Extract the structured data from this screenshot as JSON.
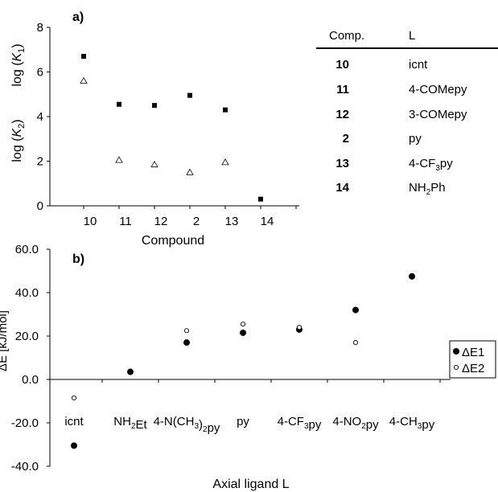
{
  "chart_data": [
    {
      "type": "scatter",
      "panel_label": "a)",
      "xlabel": "Compound",
      "ylabel_top": "log (K1)",
      "ylabel_bottom": "log (K2)",
      "categories": [
        "10",
        "11",
        "12",
        "2",
        "13",
        "14"
      ],
      "ylim": [
        0,
        8
      ],
      "yticks": [
        0,
        2,
        4,
        6,
        8
      ],
      "series": [
        {
          "marker": "filled-square",
          "values": [
            6.7,
            4.55,
            4.5,
            4.95,
            4.3,
            0.3
          ]
        },
        {
          "marker": "open-triangle",
          "values": [
            5.6,
            2.05,
            1.85,
            1.5,
            1.95,
            null
          ]
        }
      ]
    },
    {
      "type": "scatter",
      "panel_label": "b)",
      "xlabel": "Axial ligand L",
      "ylabel": "ΔE [kJ/mol]",
      "categories": [
        "icnt",
        "NH2Et",
        "4-N(CH3)2py",
        "py",
        "4-CF3py",
        "4-NO2py",
        "4-CH3py"
      ],
      "ylim": [
        -40,
        60
      ],
      "yticks": [
        -40.0,
        -20.0,
        0.0,
        20.0,
        40.0,
        60.0
      ],
      "ytick_labels": [
        "-40.0",
        "-20.0",
        "0.0",
        "20.0",
        "40.0",
        "60.0"
      ],
      "legend_position": "right",
      "series": [
        {
          "name": "ΔE1",
          "marker": "filled-circle",
          "values": [
            -30.5,
            3.5,
            17,
            21.5,
            23,
            32,
            47.5
          ]
        },
        {
          "name": "ΔE2",
          "marker": "open-circle",
          "values": [
            -8.5,
            null,
            22.5,
            25.5,
            24,
            17,
            null
          ]
        }
      ]
    }
  ],
  "table": {
    "headers": [
      "Comp.",
      "L"
    ],
    "rows": [
      {
        "comp": "10",
        "ligand": "icnt"
      },
      {
        "comp": "11",
        "ligand": "4-COMepy"
      },
      {
        "comp": "12",
        "ligand": "3-COMepy"
      },
      {
        "comp": "2",
        "ligand": "py"
      },
      {
        "comp": "13",
        "ligand": "4-CF3py"
      },
      {
        "comp": "14",
        "ligand": "NH2Ph"
      }
    ]
  }
}
